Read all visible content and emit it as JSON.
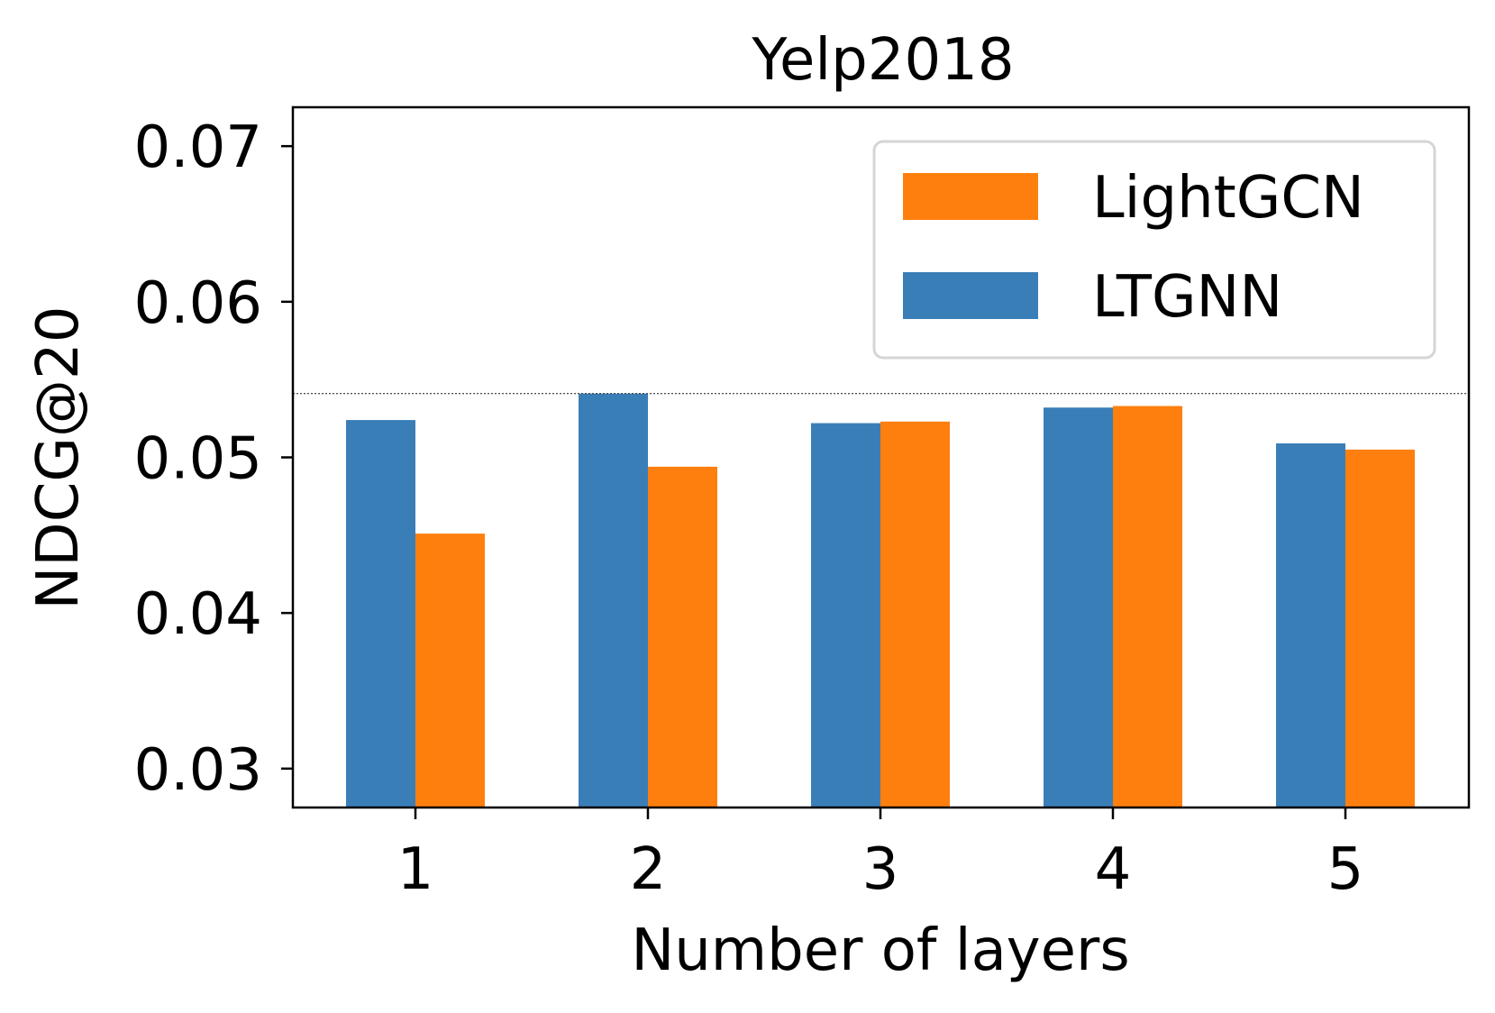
{
  "chart_data": {
    "type": "bar",
    "title": "Yelp2018",
    "xlabel": "Number of layers",
    "ylabel": "NDCG@20",
    "categories": [
      "1",
      "2",
      "3",
      "4",
      "5"
    ],
    "ylim": [
      0.0275,
      0.0725
    ],
    "yticks": [
      0.03,
      0.04,
      0.05,
      0.06,
      0.07
    ],
    "ytick_labels": [
      "0.03",
      "0.04",
      "0.05",
      "0.06",
      "0.07"
    ],
    "series": [
      {
        "name": "LTGNN",
        "color": "#3a7eb8",
        "values": [
          0.0524,
          0.0541,
          0.0522,
          0.0532,
          0.0509
        ]
      },
      {
        "name": "LightGCN",
        "color": "#ff7f0e",
        "values": [
          0.0451,
          0.0494,
          0.0523,
          0.0533,
          0.0505
        ]
      }
    ],
    "reference_line": {
      "value": 0.0541,
      "style": "dotted"
    },
    "legend": {
      "position": "upper right",
      "entries": [
        "LightGCN",
        "LTGNN"
      ]
    },
    "grid": false
  }
}
